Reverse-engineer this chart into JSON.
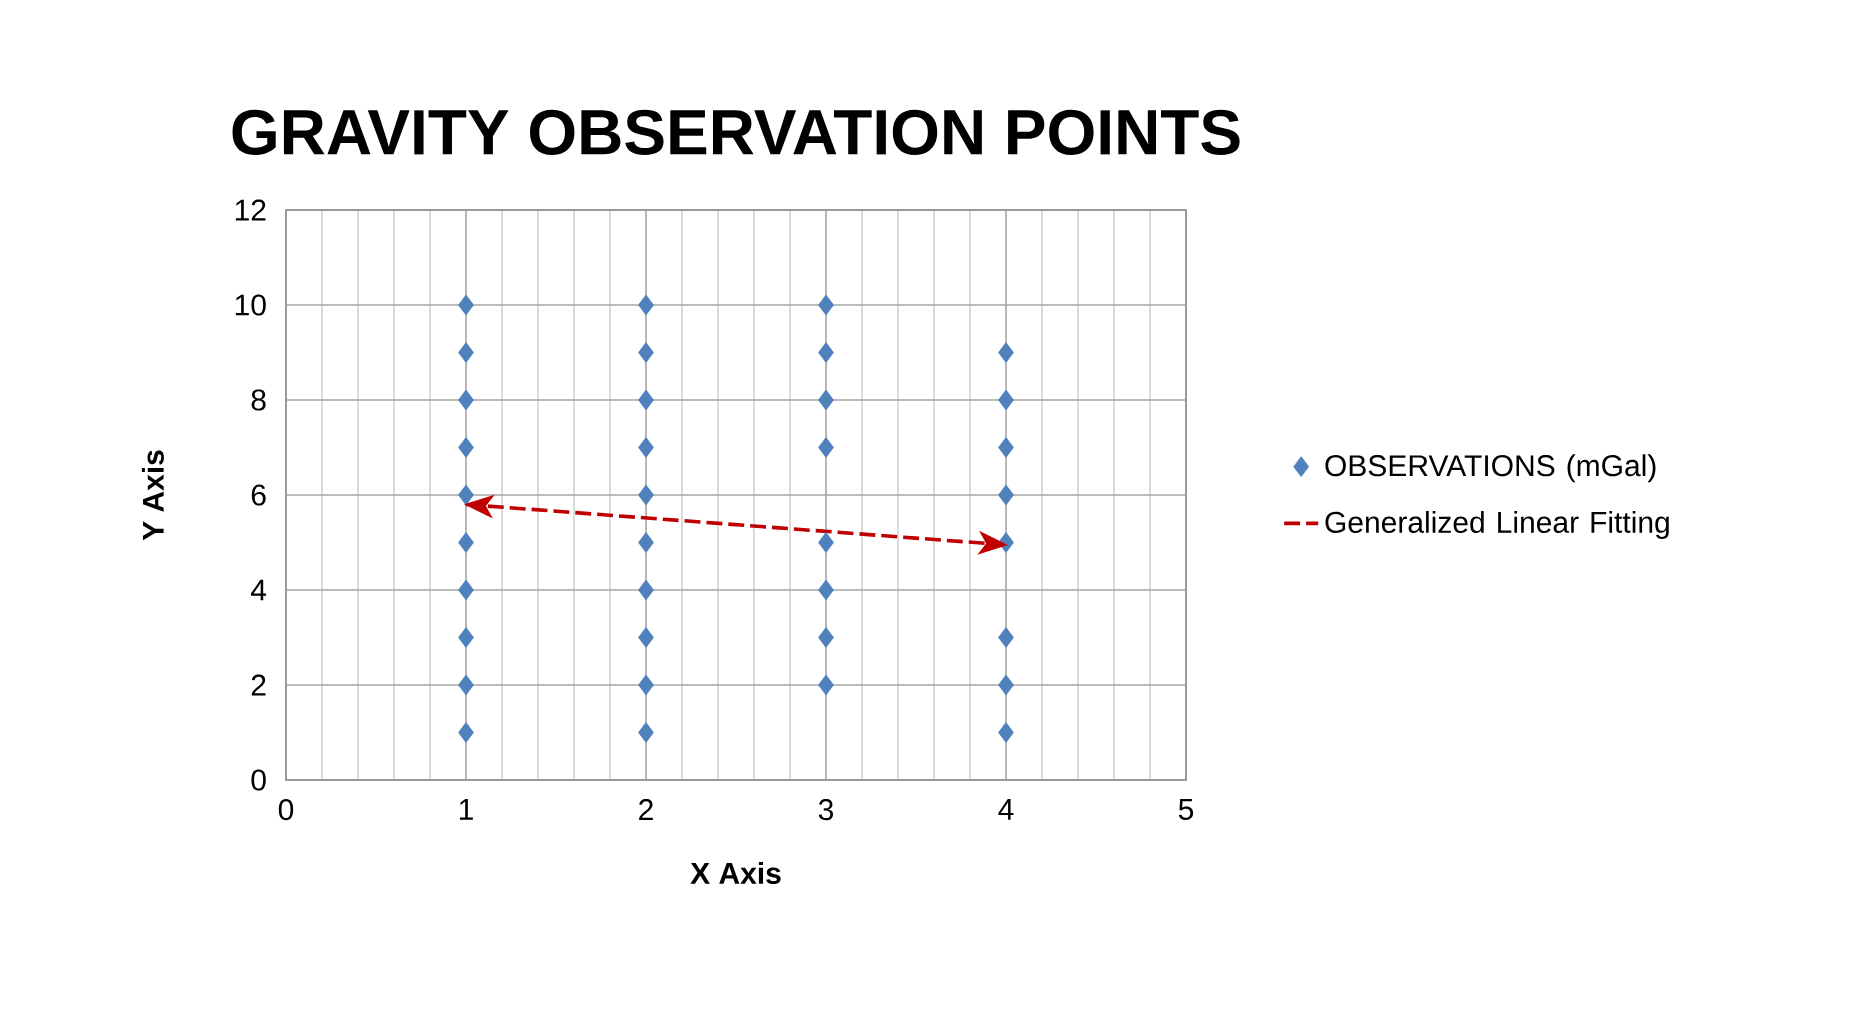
{
  "chart_data": {
    "type": "scatter",
    "title": "GRAVITY OBSERVATION POINTS",
    "xlabel": "X Axis",
    "ylabel": "Y Axis",
    "xlim": [
      0,
      5
    ],
    "ylim": [
      0,
      12
    ],
    "xticks": [
      0,
      1,
      2,
      3,
      4,
      5
    ],
    "yticks": [
      0,
      2,
      4,
      6,
      8,
      10,
      12
    ],
    "grid": true,
    "legend": "right",
    "marker": "diamond",
    "series": [
      {
        "name": "OBSERVATIONS (mGal)",
        "color": "#4f81bd",
        "x": [
          1,
          1,
          1,
          1,
          1,
          1,
          1,
          1,
          1,
          1,
          2,
          2,
          2,
          2,
          2,
          2,
          2,
          2,
          2,
          2,
          3,
          3,
          3,
          3,
          3,
          3,
          3,
          3,
          4,
          4,
          4,
          4,
          4,
          4,
          4,
          4
        ],
        "values": [
          1,
          2,
          3,
          4,
          5,
          6,
          7,
          8,
          9,
          10,
          1,
          2,
          3,
          4,
          5,
          6,
          7,
          8,
          9,
          10,
          2,
          3,
          4,
          5,
          7,
          8,
          9,
          10,
          1,
          2,
          3,
          5,
          6,
          7,
          8,
          9
        ]
      },
      {
        "name": "Generalized Linear Fitting",
        "type": "line",
        "color": "#c00000",
        "line_style": "dashed",
        "marker": "none",
        "x": [
          1,
          4
        ],
        "values": [
          5.8,
          4.95
        ]
      }
    ]
  }
}
